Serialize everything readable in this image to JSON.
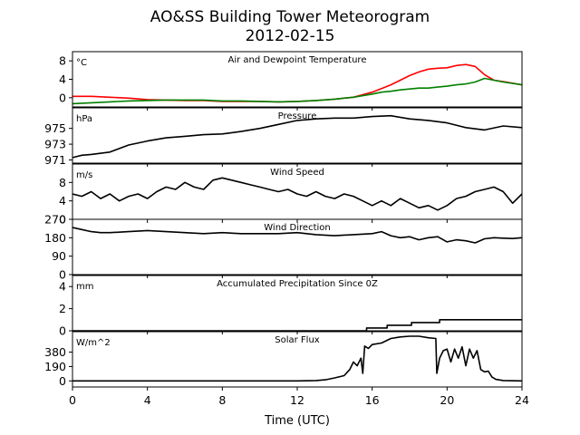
{
  "title_line1": "AO&SS Building Tower Meteorogram",
  "title_line2": "2012-02-15",
  "colors": {
    "air_temperature": "#ff0000",
    "dewpoint": "#008000",
    "line": "#000000",
    "axes": "#000000",
    "background": "#ffffff"
  },
  "chart_data": [
    {
      "type": "line",
      "title": "Air and Dewpoint Temperature",
      "unit": "°C",
      "xlabel": "",
      "ylabel": "",
      "xlim": [
        0,
        24
      ],
      "ylim": [
        -2,
        10
      ],
      "yticks": [
        0,
        4,
        8
      ],
      "ytick_labels": [
        "0",
        "4",
        "8"
      ],
      "series": [
        {
          "name": "",
          "color": "#ff0000",
          "x": [
            0,
            1,
            2,
            3,
            4,
            5,
            6,
            7,
            8,
            9,
            10,
            11,
            12,
            13,
            14,
            15,
            16,
            16.5,
            17,
            17.5,
            18,
            18.5,
            19,
            19.5,
            20,
            20.5,
            21,
            21.5,
            22,
            22.5,
            23,
            24
          ],
          "y": [
            0.3,
            0.3,
            0.1,
            -0.1,
            -0.4,
            -0.5,
            -0.6,
            -0.6,
            -0.8,
            -0.8,
            -0.8,
            -0.9,
            -0.8,
            -0.6,
            -0.3,
            0.1,
            1.2,
            2.0,
            2.8,
            3.8,
            4.8,
            5.6,
            6.2,
            6.4,
            6.5,
            7.0,
            7.2,
            6.8,
            5.0,
            3.8,
            3.5,
            2.8
          ]
        },
        {
          "name": "",
          "color": "#008000",
          "x": [
            0,
            1,
            2,
            3,
            4,
            5,
            6,
            7,
            8,
            9,
            10,
            11,
            12,
            13,
            14,
            15,
            16,
            16.5,
            17,
            17.5,
            18,
            18.5,
            19,
            19.5,
            20,
            20.5,
            21,
            21.5,
            22,
            22.5,
            23,
            24
          ],
          "y": [
            -1.3,
            -1.1,
            -0.9,
            -0.7,
            -0.6,
            -0.5,
            -0.5,
            -0.5,
            -0.7,
            -0.7,
            -0.8,
            -0.9,
            -0.8,
            -0.6,
            -0.3,
            0.1,
            0.8,
            1.2,
            1.4,
            1.7,
            1.9,
            2.1,
            2.1,
            2.3,
            2.5,
            2.8,
            3.0,
            3.4,
            4.2,
            3.8,
            3.4,
            2.8
          ]
        }
      ]
    },
    {
      "type": "line",
      "title": "Pressure",
      "unit": "hPa",
      "xlabel": "",
      "ylabel": "",
      "xlim": [
        0,
        24
      ],
      "ylim": [
        970.6,
        977.6
      ],
      "yticks": [
        971,
        973,
        975
      ],
      "ytick_labels": [
        "971",
        "973",
        "975"
      ],
      "series": [
        {
          "name": "",
          "color": "#000000",
          "x": [
            0,
            0.5,
            1,
            2,
            3,
            4,
            5,
            6,
            7,
            8,
            9,
            10,
            11,
            12,
            13,
            14,
            15,
            16,
            17,
            18,
            19,
            20,
            21,
            22,
            23,
            24
          ],
          "y": [
            971.3,
            971.6,
            971.7,
            972.0,
            972.9,
            973.4,
            973.8,
            974.0,
            974.2,
            974.3,
            974.6,
            975.0,
            975.5,
            976.0,
            976.2,
            976.3,
            976.3,
            976.5,
            976.6,
            976.2,
            976.0,
            975.7,
            975.1,
            974.8,
            975.3,
            975.1
          ]
        }
      ]
    },
    {
      "type": "line",
      "title": "Wind Speed",
      "unit": "m/s",
      "xlabel": "",
      "ylabel": "",
      "xlim": [
        0,
        24
      ],
      "ylim": [
        0,
        12
      ],
      "yticks": [
        0,
        4,
        8
      ],
      "ytick_labels": [
        "0",
        "4",
        "8"
      ],
      "series": [
        {
          "name": "",
          "color": "#000000",
          "x": [
            0,
            0.5,
            1,
            1.5,
            2,
            2.5,
            3,
            3.5,
            4,
            4.5,
            5,
            5.5,
            6,
            6.5,
            7,
            7.5,
            8,
            8.5,
            9,
            9.5,
            10,
            10.5,
            11,
            11.5,
            12,
            12.5,
            13,
            13.5,
            14,
            14.5,
            15,
            15.5,
            16,
            16.5,
            17,
            17.5,
            18,
            18.5,
            19,
            19.5,
            20,
            20.5,
            21,
            21.5,
            22,
            22.5,
            23,
            23.5,
            24
          ],
          "y": [
            5.5,
            5.0,
            6.0,
            4.5,
            5.5,
            4.0,
            5.0,
            5.5,
            4.5,
            6.0,
            7.0,
            6.5,
            8.0,
            7.0,
            6.5,
            8.5,
            9.0,
            8.5,
            8.0,
            7.5,
            7.0,
            6.5,
            6.0,
            6.5,
            5.5,
            5.0,
            6.0,
            5.0,
            4.5,
            5.5,
            5.0,
            4.0,
            3.0,
            4.0,
            3.0,
            4.5,
            3.5,
            2.5,
            3.0,
            2.0,
            3.0,
            4.5,
            5.0,
            6.0,
            6.5,
            7.0,
            6.0,
            3.5,
            5.5
          ]
        }
      ]
    },
    {
      "type": "line",
      "title": "Wind Direction",
      "unit": "",
      "xlabel": "",
      "ylabel": "",
      "xlim": [
        0,
        24
      ],
      "ylim": [
        0,
        270
      ],
      "yticks": [
        0,
        90,
        180,
        270
      ],
      "ytick_labels": [
        "0",
        "90",
        "180",
        "270"
      ],
      "series": [
        {
          "name": "",
          "color": "#000000",
          "x": [
            0,
            0.5,
            1,
            1.5,
            2,
            3,
            4,
            5,
            6,
            7,
            8,
            9,
            10,
            11,
            12,
            13,
            14,
            15,
            16,
            16.5,
            17,
            17.5,
            18,
            18.5,
            19,
            19.5,
            20,
            20.5,
            21,
            21.5,
            22,
            22.5,
            23,
            23.5,
            24
          ],
          "y": [
            230,
            220,
            210,
            205,
            205,
            210,
            215,
            210,
            205,
            200,
            205,
            200,
            200,
            200,
            205,
            195,
            190,
            195,
            200,
            210,
            190,
            180,
            185,
            170,
            180,
            185,
            160,
            170,
            165,
            155,
            175,
            180,
            178,
            176,
            180
          ]
        }
      ]
    },
    {
      "type": "line",
      "title": "Accumulated Precipitation Since 0Z",
      "unit": "mm",
      "xlabel": "",
      "ylabel": "",
      "xlim": [
        0,
        24
      ],
      "ylim": [
        0,
        5
      ],
      "yticks": [
        0,
        2,
        4
      ],
      "ytick_labels": [
        "0",
        "2",
        "4"
      ],
      "series": [
        {
          "name": "",
          "color": "#000000",
          "x": [
            0,
            15.7,
            15.7,
            16.8,
            16.8,
            18.1,
            18.1,
            19.6,
            19.6,
            24
          ],
          "y": [
            0,
            0,
            0.25,
            0.25,
            0.5,
            0.5,
            0.75,
            0.75,
            1.0,
            1.0
          ]
        }
      ]
    },
    {
      "type": "line",
      "title": "Solar Flux",
      "unit": "W/m^2",
      "xlabel": "Time (UTC)",
      "ylabel": "",
      "xlim": [
        0,
        24
      ],
      "ylim": [
        -80,
        650
      ],
      "yticks": [
        0,
        190,
        380
      ],
      "ytick_labels": [
        "0",
        "190",
        "380"
      ],
      "xticks": [
        0,
        4,
        8,
        12,
        16,
        20,
        24
      ],
      "xtick_labels": [
        "0",
        "4",
        "8",
        "12",
        "16",
        "20",
        "24"
      ],
      "series": [
        {
          "name": "",
          "color": "#000000",
          "x": [
            0,
            12,
            13,
            13.5,
            14,
            14.5,
            14.8,
            15,
            15.2,
            15.4,
            15.5,
            15.6,
            15.8,
            16,
            16.5,
            17,
            17.5,
            18,
            18.5,
            19,
            19.4,
            19.45,
            19.6,
            19.8,
            20,
            20.2,
            20.4,
            20.6,
            20.8,
            21,
            21.2,
            21.4,
            21.6,
            21.8,
            22,
            22.2,
            22.4,
            22.6,
            23,
            24
          ],
          "y": [
            0,
            0,
            5,
            15,
            40,
            70,
            150,
            250,
            200,
            300,
            100,
            460,
            430,
            480,
            500,
            560,
            580,
            590,
            590,
            570,
            560,
            100,
            300,
            400,
            420,
            250,
            420,
            300,
            450,
            200,
            420,
            300,
            400,
            150,
            120,
            130,
            50,
            20,
            5,
            0
          ]
        }
      ]
    }
  ]
}
